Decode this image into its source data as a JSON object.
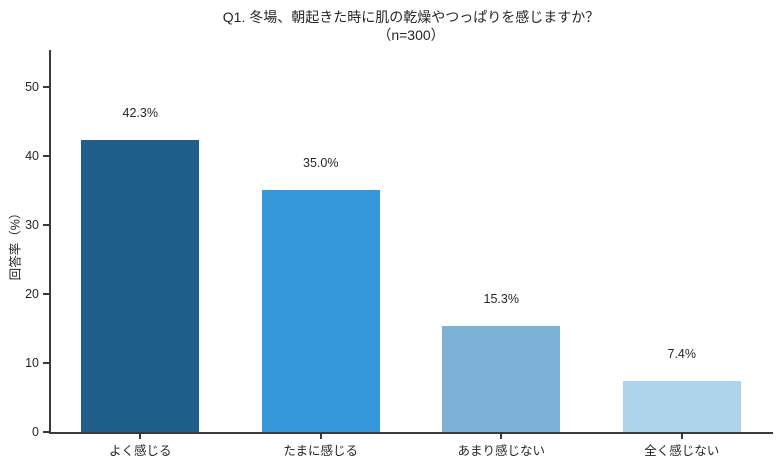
{
  "chart_data": {
    "type": "bar",
    "title": "Q1. 冬場、朝起きた時に肌の乾燥やつっぱりを感じますか？",
    "subtitle": "（n=300）",
    "categories": [
      "よく感じる",
      "たまに感じる",
      "あまり感じない",
      "全く感じない"
    ],
    "values": [
      42.3,
      35.0,
      15.3,
      7.4
    ],
    "value_labels": [
      "42.3%",
      "35.0%",
      "15.3%",
      "7.4%"
    ],
    "bar_colors": [
      "#1f5e8a",
      "#3498db",
      "#7cb1d6",
      "#aed4ec"
    ],
    "xlabel": "",
    "ylabel": "回答率（%）",
    "ylim": [
      0,
      55.3
    ],
    "yticks": [
      0,
      10,
      20,
      30,
      40,
      50
    ],
    "grid": false,
    "legend": null
  }
}
